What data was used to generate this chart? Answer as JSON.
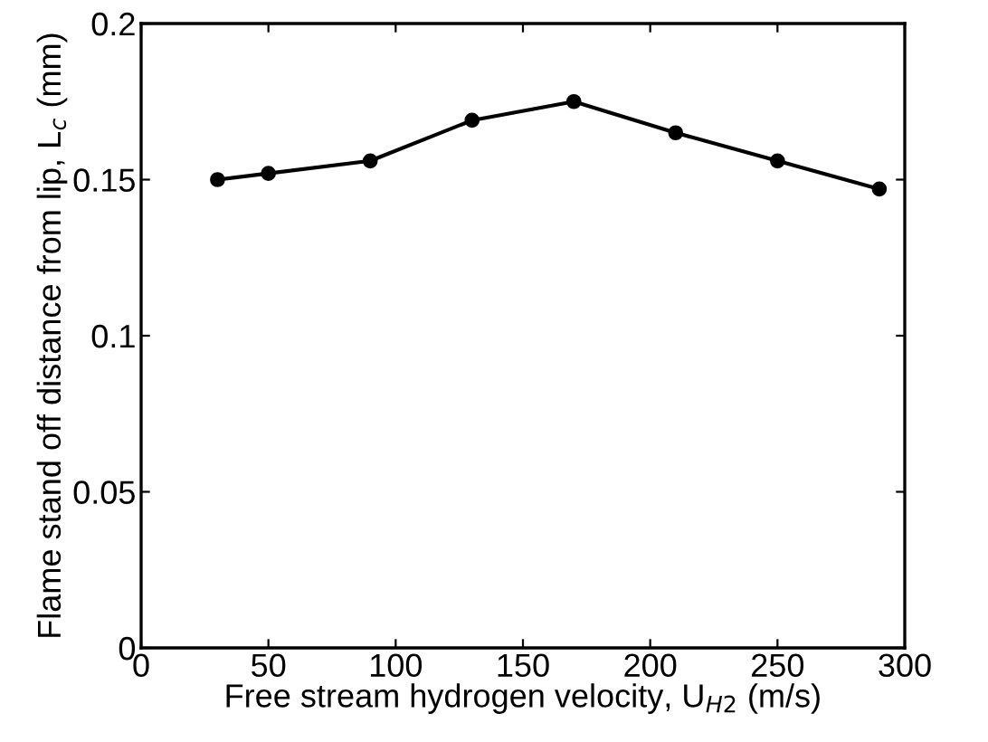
{
  "chart_data": {
    "type": "line",
    "xlabel": "Free stream hydrogen velocity, U$_{H2}$ (m/s)",
    "ylabel": "Flame stand off distance from lip, L$_{c}$ (mm)",
    "x": [
      30,
      50,
      90,
      130,
      170,
      210,
      250,
      290
    ],
    "series": [
      {
        "color": "#000000",
        "values": [
          0.15,
          0.152,
          0.156,
          0.169,
          0.175,
          0.165,
          0.156,
          0.147
        ]
      }
    ],
    "xlim": [
      0,
      300
    ],
    "xticks": [
      0,
      50,
      100,
      150,
      200,
      250,
      300
    ],
    "ylim": [
      0,
      0.2
    ],
    "yticks": [
      0,
      0.05,
      0.1,
      0.15,
      0.2
    ],
    "marker": "circle",
    "line_style": "solid",
    "grid": false
  }
}
